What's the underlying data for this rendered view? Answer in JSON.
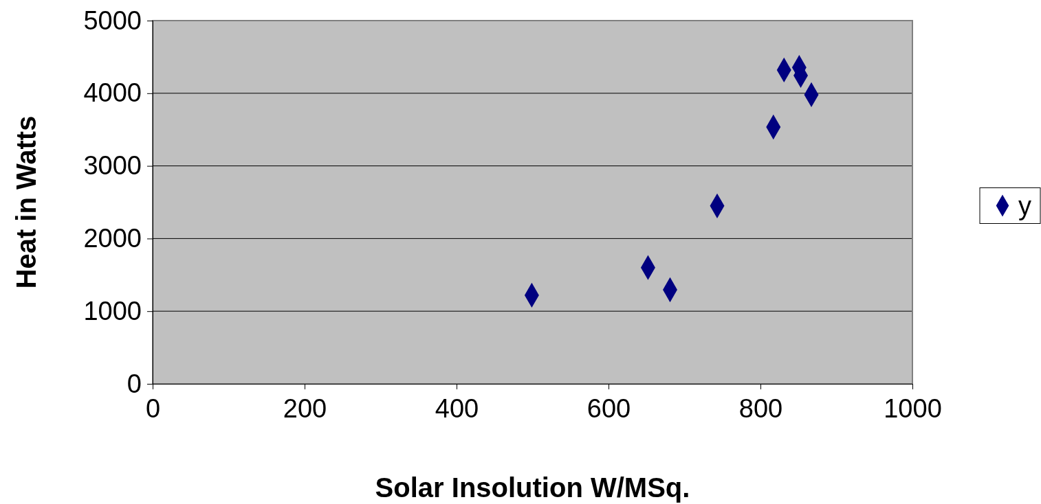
{
  "chart_data": {
    "type": "scatter",
    "xlabel": "Solar Insolution W/MSq.",
    "ylabel": "Heat in Watts",
    "x": [
      499,
      652,
      681,
      743,
      817,
      831,
      851,
      853,
      867
    ],
    "series": [
      {
        "name": "y",
        "color": "#000080",
        "values": [
          1220,
          1600,
          1295,
          2450,
          3535,
          4320,
          4355,
          4245,
          3980
        ]
      }
    ],
    "xlim": [
      0,
      1000
    ],
    "xticks": [
      0,
      200,
      400,
      600,
      800,
      1000
    ],
    "ylim": [
      0,
      5000
    ],
    "yticks": [
      0,
      1000,
      2000,
      3000,
      4000,
      5000
    ],
    "grid": "y",
    "legend": "right",
    "marker": "diamond"
  }
}
